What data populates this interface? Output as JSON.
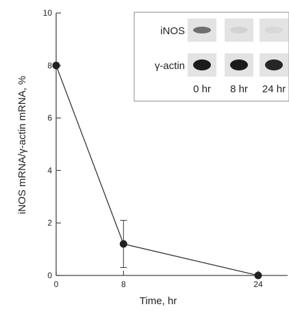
{
  "chart_data": {
    "type": "line",
    "xlabel": "Time, hr",
    "ylabel": "iNOS mRNA/γ-actin mRNA, %",
    "xlim": [
      0,
      27.5
    ],
    "ylim": [
      0,
      10
    ],
    "x_ticks": [
      0,
      8,
      24
    ],
    "y_ticks": [
      0,
      2,
      4,
      6,
      8,
      10
    ],
    "series": [
      {
        "x": [
          0,
          8,
          24
        ],
        "values": [
          8.0,
          1.2,
          0.0
        ],
        "error": [
          0,
          0.9,
          0
        ],
        "color": "#333333",
        "marker": "filled-circle"
      }
    ],
    "grid": false,
    "inset": {
      "rows": [
        {
          "label": "iNOS",
          "band_intensity": [
            0.55,
            0.08,
            0.02
          ]
        },
        {
          "label": "γ-actin",
          "band_intensity": [
            0.95,
            0.95,
            0.9
          ]
        }
      ],
      "lanes": [
        "0 hr",
        "8 hr",
        "24 hr"
      ],
      "position": "top-right"
    }
  }
}
